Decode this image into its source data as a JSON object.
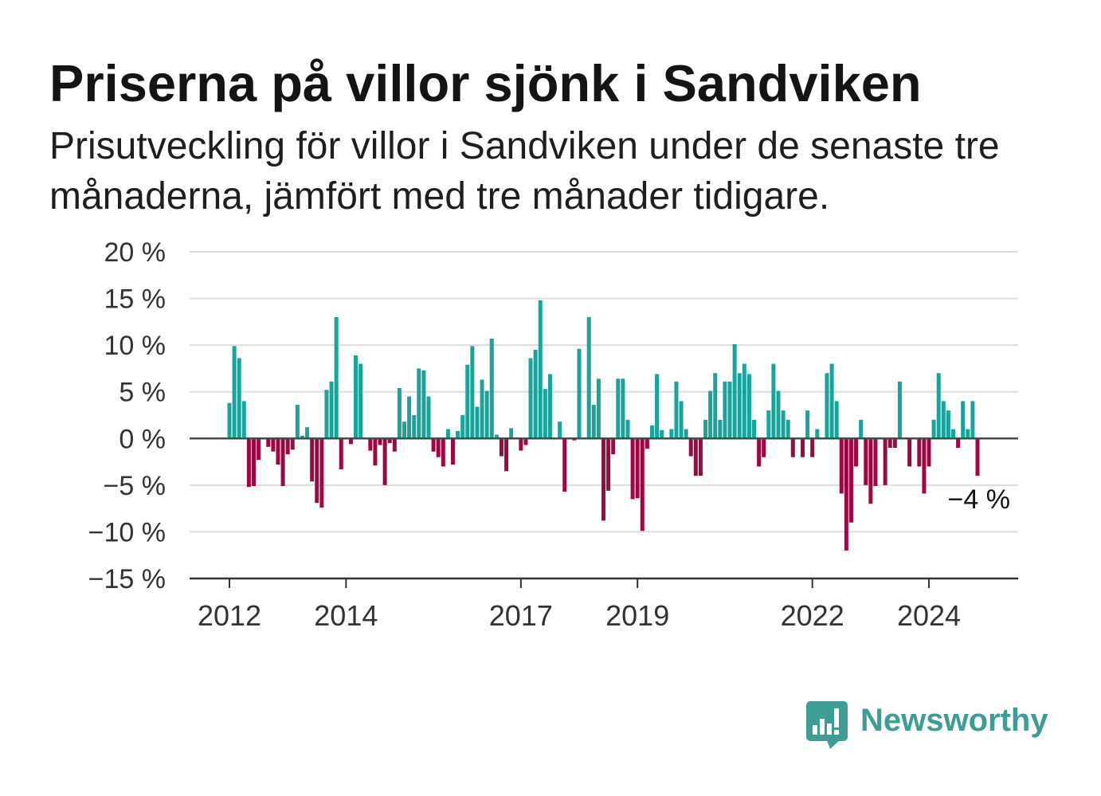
{
  "chart_data": {
    "type": "bar",
    "title": "Priserna på villor sjönk i Sandviken",
    "subtitle": "Prisutveckling för villor i Sandviken under de senaste tre månaderna, jämfört med tre månader tidigare.",
    "x": [
      "2012-01",
      "2012-02",
      "2012-03",
      "2012-04",
      "2012-05",
      "2012-06",
      "2012-07",
      "2012-08",
      "2012-09",
      "2012-10",
      "2012-11",
      "2012-12",
      "2013-01",
      "2013-02",
      "2013-03",
      "2013-04",
      "2013-05",
      "2013-06",
      "2013-07",
      "2013-08",
      "2013-09",
      "2013-10",
      "2013-11",
      "2013-12",
      "2014-01",
      "2014-02",
      "2014-03",
      "2014-04",
      "2014-05",
      "2014-06",
      "2014-07",
      "2014-08",
      "2014-09",
      "2014-10",
      "2014-11",
      "2014-12",
      "2015-01",
      "2015-02",
      "2015-03",
      "2015-04",
      "2015-05",
      "2015-06",
      "2015-07",
      "2015-08",
      "2015-09",
      "2015-10",
      "2015-11",
      "2015-12",
      "2016-01",
      "2016-02",
      "2016-03",
      "2016-04",
      "2016-05",
      "2016-06",
      "2016-07",
      "2016-08",
      "2016-09",
      "2016-10",
      "2016-11",
      "2016-12",
      "2017-01",
      "2017-02",
      "2017-03",
      "2017-04",
      "2017-05",
      "2017-06",
      "2017-07",
      "2017-08",
      "2017-09",
      "2017-10",
      "2017-11",
      "2017-12",
      "2018-01",
      "2018-02",
      "2018-03",
      "2018-04",
      "2018-05",
      "2018-06",
      "2018-07",
      "2018-08",
      "2018-09",
      "2018-10",
      "2018-11",
      "2018-12",
      "2019-01",
      "2019-02",
      "2019-03",
      "2019-04",
      "2019-05",
      "2019-06",
      "2019-07",
      "2019-08",
      "2019-09",
      "2019-10",
      "2019-11",
      "2019-12",
      "2020-01",
      "2020-02",
      "2020-03",
      "2020-04",
      "2020-05",
      "2020-06",
      "2020-07",
      "2020-08",
      "2020-09",
      "2020-10",
      "2020-11",
      "2020-12",
      "2021-01",
      "2021-02",
      "2021-03",
      "2021-04",
      "2021-05",
      "2021-06",
      "2021-07",
      "2021-08",
      "2021-09",
      "2021-10",
      "2021-11",
      "2021-12",
      "2022-01",
      "2022-02",
      "2022-03",
      "2022-04",
      "2022-05",
      "2022-06",
      "2022-07",
      "2022-08",
      "2022-09",
      "2022-10",
      "2022-11",
      "2022-12",
      "2023-01",
      "2023-02",
      "2023-03",
      "2023-04",
      "2023-05",
      "2023-06",
      "2023-07",
      "2023-08",
      "2023-09",
      "2023-10",
      "2023-11",
      "2023-12",
      "2024-01",
      "2024-02",
      "2024-03",
      "2024-04",
      "2024-05",
      "2024-06",
      "2024-07",
      "2024-08",
      "2024-09",
      "2024-10",
      "2024-11"
    ],
    "values": [
      3.8,
      9.9,
      8.6,
      4.0,
      -5.2,
      -5.1,
      -2.3,
      0,
      -0.9,
      -1.4,
      -2.8,
      -5.1,
      -1.7,
      -1.2,
      3.6,
      0.3,
      1.2,
      -4.6,
      -6.9,
      -7.4,
      5.2,
      6.1,
      13.0,
      -3.3,
      0,
      -0.6,
      8.9,
      8.0,
      0,
      -1.3,
      -2.9,
      -0.7,
      -5.0,
      -0.5,
      -1.4,
      5.4,
      1.8,
      4.5,
      2.5,
      7.5,
      7.3,
      4.5,
      -1.4,
      -2.0,
      -3.0,
      1.0,
      -2.8,
      0.8,
      2.5,
      7.9,
      9.9,
      3.4,
      6.3,
      5.1,
      10.7,
      0.4,
      -1.9,
      -3.5,
      1.1,
      0,
      -1.3,
      -0.7,
      8.6,
      9.5,
      14.8,
      5.3,
      6.9,
      0,
      1.8,
      -5.7,
      0,
      -0.2,
      9.6,
      0,
      13.0,
      3.6,
      6.4,
      -8.8,
      -5.6,
      -1.7,
      6.4,
      6.4,
      2.0,
      -6.5,
      -6.4,
      -9.9,
      -1.1,
      1.4,
      6.9,
      0.9,
      0,
      1.0,
      6.1,
      4.0,
      1.0,
      -1.9,
      -4.0,
      -4.0,
      2.0,
      5.1,
      7.0,
      2.0,
      6.1,
      6.1,
      10.1,
      7.0,
      8.0,
      6.9,
      2.0,
      -3.0,
      -2.0,
      3.0,
      8.0,
      5.1,
      3.0,
      2.0,
      -2.0,
      0,
      -2.0,
      3.0,
      -2.0,
      1.0,
      0,
      7.0,
      8.0,
      4.0,
      -5.9,
      -12.0,
      -9.0,
      -3.0,
      2.0,
      -5.0,
      -7.0,
      -5.1,
      0,
      -5.0,
      -1.0,
      -1.0,
      6.1,
      0,
      -3.0,
      0,
      -3.0,
      -5.9,
      -3.0,
      2.0,
      7.0,
      4.0,
      3.0,
      1.0,
      -1.0,
      4.0,
      1.0,
      4.0,
      -4.0
    ],
    "xlim": [
      "2011-04-25",
      "2025-07-12"
    ],
    "ylim": [
      -15,
      20
    ],
    "yticks": [
      {
        "value": 20,
        "label": "20 %"
      },
      {
        "value": 15,
        "label": "15 %"
      },
      {
        "value": 10,
        "label": "10 %"
      },
      {
        "value": 5,
        "label": "5 %"
      },
      {
        "value": 0,
        "label": "0 %"
      },
      {
        "value": -5,
        "label": "−5 %"
      },
      {
        "value": -10,
        "label": "−10 %"
      },
      {
        "value": -15,
        "label": "−15 %"
      }
    ],
    "xticks": [
      {
        "value": "2012-01",
        "label": "2012"
      },
      {
        "value": "2014-01",
        "label": "2014"
      },
      {
        "value": "2017-01",
        "label": "2017"
      },
      {
        "value": "2019-01",
        "label": "2019"
      },
      {
        "value": "2022-01",
        "label": "2022"
      },
      {
        "value": "2024-01",
        "label": "2024"
      }
    ],
    "annotations": [
      {
        "x": "2024-11",
        "y": -4,
        "text": "−4 %"
      }
    ],
    "grid": true,
    "colors": {
      "positive": "#19a39a",
      "negative": "#9b0844",
      "grid": "#dcdcdc",
      "zero": "#4a4a4a",
      "axis": "#333333"
    }
  },
  "brand": {
    "name": "Newsworthy",
    "icon": "bar-chart-speech-bubble-icon",
    "color": "#3c9d94"
  }
}
